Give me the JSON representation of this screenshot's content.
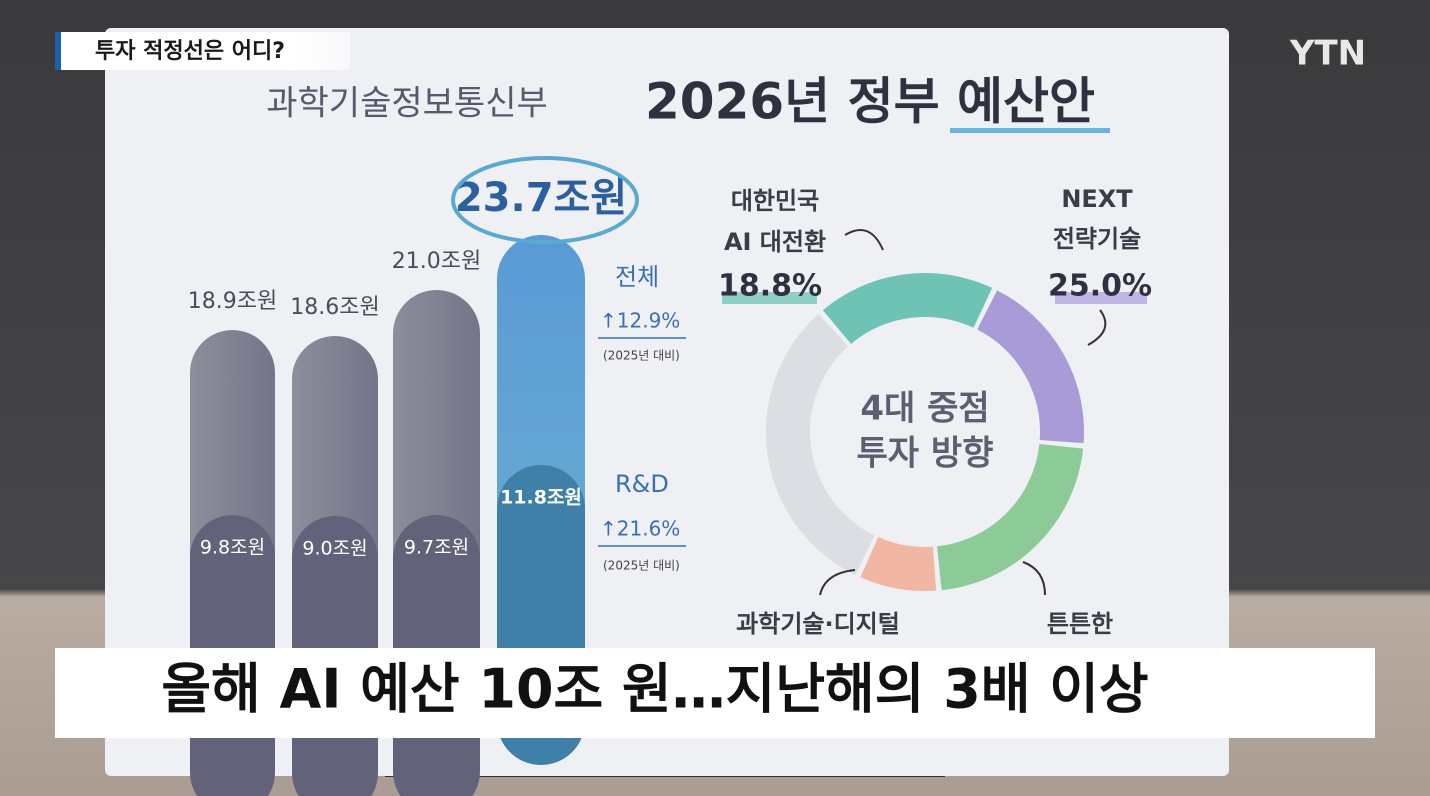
{
  "header": {
    "tag": "투자 적정선은 어디?",
    "logo": "YTN"
  },
  "board": {
    "ministry": "과학기술정보통신부",
    "title": "2026년 정부 예산안",
    "bars": [
      {
        "total": "18.9조원",
        "rnd": "9.8조원"
      },
      {
        "total": "18.6조원",
        "rnd": "9.0조원"
      },
      {
        "total": "21.0조원",
        "rnd": "9.7조원"
      },
      {
        "total": "23.7조원",
        "rnd": "11.8조원"
      }
    ],
    "total_note": {
      "label": "전체",
      "change": "↑12.9%",
      "basis": "(2025년 대비)"
    },
    "rnd_note": {
      "label": "R&D",
      "change": "↑21.6%",
      "basis": "(2025년 대비)"
    },
    "donut": {
      "center": [
        "4대 중점",
        "투자 방향"
      ],
      "segments": [
        {
          "label": [
            "대한민국",
            "AI 대전환"
          ],
          "share": "18.8%"
        },
        {
          "label": [
            "NEXT",
            "전략기술"
          ],
          "share": "25.0%"
        },
        {
          "label": [
            "과학기술·디지털"
          ]
        },
        {
          "label": [
            "튼튼한"
          ]
        }
      ]
    }
  },
  "caption": "올해 AI 예산 10조 원…지난해의 3배 이상"
}
